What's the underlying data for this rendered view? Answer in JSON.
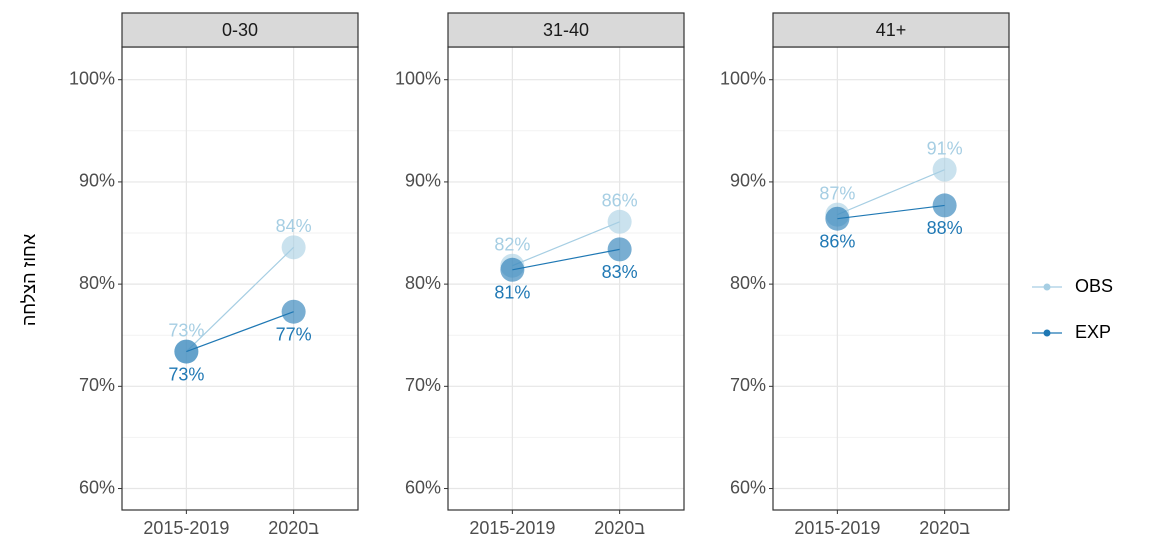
{
  "chart_data": [
    {
      "type": "line",
      "title": "0-30",
      "ylabel": "אחוז הצלחה",
      "categories": [
        "2015-2019",
        "2020ב"
      ],
      "series": [
        {
          "name": "OBS",
          "color": "#a6cee3",
          "values": [
            73.4,
            83.6
          ],
          "value_labels": [
            "73%",
            "84%"
          ]
        },
        {
          "name": "EXP",
          "color": "#1f78b4",
          "values": [
            73.4,
            77.3
          ],
          "value_labels": [
            "73%",
            "77%"
          ]
        }
      ],
      "ylim": [
        57.9,
        103.2
      ],
      "yticks": [
        {
          "value": 60,
          "label": "60%"
        },
        {
          "value": 70,
          "label": "70%"
        },
        {
          "value": 80,
          "label": "80%"
        },
        {
          "value": 90,
          "label": "90%"
        },
        {
          "value": 100,
          "label": "100%"
        }
      ],
      "yminorticks": [
        65,
        75,
        85,
        95
      ],
      "grid": true,
      "legend": "right"
    },
    {
      "type": "line",
      "title": "31-40",
      "categories": [
        "2015-2019",
        "2020ב"
      ],
      "series": [
        {
          "name": "OBS",
          "color": "#a6cee3",
          "values": [
            81.8,
            86.1
          ],
          "value_labels": [
            "82%",
            "86%"
          ]
        },
        {
          "name": "EXP",
          "color": "#1f78b4",
          "values": [
            81.4,
            83.4
          ],
          "value_labels": [
            "81%",
            "83%"
          ]
        }
      ],
      "ylim": [
        57.9,
        103.2
      ],
      "yticks": [
        {
          "value": 60,
          "label": "60%"
        },
        {
          "value": 70,
          "label": "70%"
        },
        {
          "value": 80,
          "label": "80%"
        },
        {
          "value": 90,
          "label": "90%"
        },
        {
          "value": 100,
          "label": "100%"
        }
      ],
      "yminorticks": [
        65,
        75,
        85,
        95
      ],
      "grid": true
    },
    {
      "type": "line",
      "title": "41+",
      "categories": [
        "2015-2019",
        "2020ב"
      ],
      "series": [
        {
          "name": "OBS",
          "color": "#a6cee3",
          "values": [
            86.8,
            91.2
          ],
          "value_labels": [
            "87%",
            "91%"
          ]
        },
        {
          "name": "EXP",
          "color": "#1f78b4",
          "values": [
            86.4,
            87.7
          ],
          "value_labels": [
            "86%",
            "88%"
          ]
        }
      ],
      "ylim": [
        57.9,
        103.2
      ],
      "yticks": [
        {
          "value": 60,
          "label": "60%"
        },
        {
          "value": 70,
          "label": "70%"
        },
        {
          "value": 80,
          "label": "80%"
        },
        {
          "value": 90,
          "label": "90%"
        },
        {
          "value": 100,
          "label": "100%"
        }
      ],
      "yminorticks": [
        65,
        75,
        85,
        95
      ],
      "grid": true
    }
  ]
}
